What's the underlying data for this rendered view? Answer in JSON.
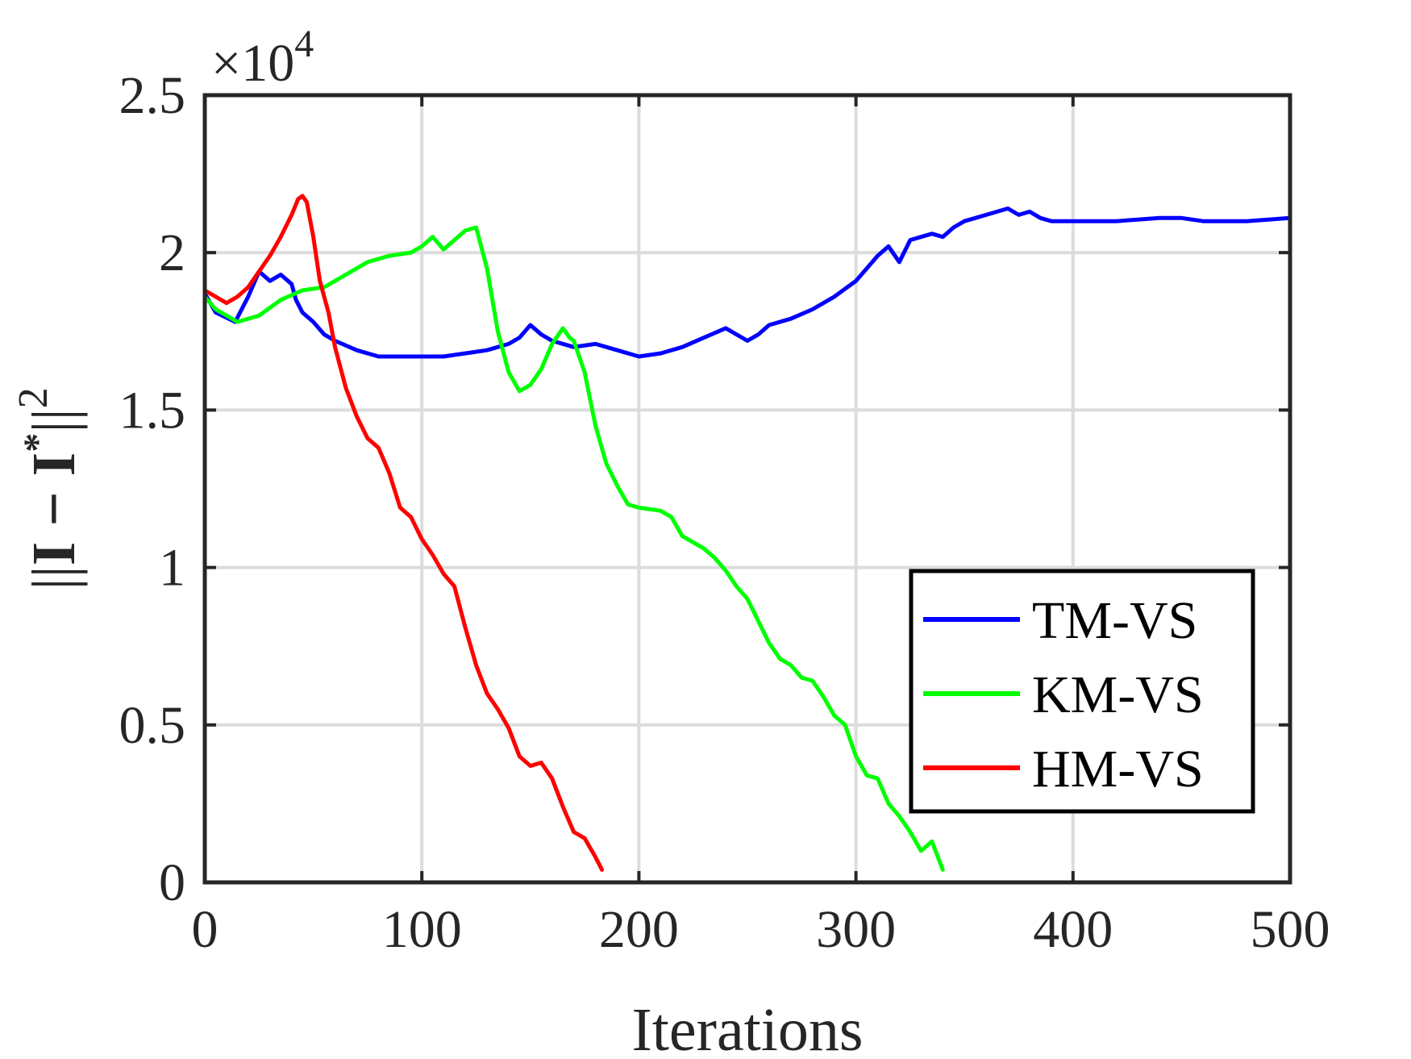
{
  "chart_data": {
    "type": "line",
    "title": "",
    "xlabel": "Iterations",
    "ylabel_parts": {
      "open": "||",
      "mid": "I − I",
      "sup": "*",
      "close": "||",
      "power": "2"
    },
    "exponent_label": {
      "base": "×10",
      "power": "4"
    },
    "xlim": [
      0,
      500
    ],
    "ylim": [
      0,
      2.5
    ],
    "xticks": [
      0,
      100,
      200,
      300,
      400,
      500
    ],
    "xtick_labels": [
      "0",
      "100",
      "200",
      "300",
      "400",
      "500"
    ],
    "yticks": [
      0,
      0.5,
      1,
      1.5,
      2,
      2.5
    ],
    "ytick_labels": [
      "0",
      "0.5",
      "1",
      "1.5",
      "2",
      "2.5"
    ],
    "grid": true,
    "legend_position": "lower-right",
    "series": [
      {
        "name": "TM-VS",
        "color": "#0000ff",
        "x": [
          0,
          5,
          8,
          14,
          20,
          25,
          30,
          35,
          40,
          42,
          45,
          50,
          55,
          60,
          70,
          80,
          90,
          100,
          110,
          120,
          130,
          140,
          145,
          150,
          155,
          160,
          170,
          180,
          190,
          200,
          210,
          220,
          230,
          240,
          250,
          255,
          260,
          270,
          280,
          290,
          300,
          305,
          310,
          315,
          320,
          325,
          330,
          335,
          340,
          345,
          350,
          355,
          360,
          370,
          375,
          380,
          385,
          390,
          400,
          420,
          440,
          450,
          460,
          480,
          500
        ],
        "y": [
          1.87,
          1.81,
          1.8,
          1.78,
          1.86,
          1.94,
          1.91,
          1.93,
          1.9,
          1.85,
          1.81,
          1.78,
          1.74,
          1.72,
          1.69,
          1.67,
          1.67,
          1.67,
          1.67,
          1.68,
          1.69,
          1.71,
          1.73,
          1.77,
          1.74,
          1.72,
          1.7,
          1.71,
          1.69,
          1.67,
          1.68,
          1.7,
          1.73,
          1.76,
          1.72,
          1.74,
          1.77,
          1.79,
          1.82,
          1.86,
          1.91,
          1.95,
          1.99,
          2.02,
          1.97,
          2.04,
          2.05,
          2.06,
          2.05,
          2.08,
          2.1,
          2.11,
          2.12,
          2.14,
          2.12,
          2.13,
          2.11,
          2.1,
          2.1,
          2.1,
          2.11,
          2.11,
          2.1,
          2.1,
          2.11
        ]
      },
      {
        "name": "KM-VS",
        "color": "#00ff00",
        "x": [
          0,
          5,
          15,
          25,
          35,
          45,
          55,
          65,
          75,
          85,
          95,
          100,
          105,
          110,
          115,
          120,
          125,
          130,
          135,
          140,
          145,
          150,
          155,
          160,
          165,
          168,
          170,
          175,
          180,
          185,
          190,
          195,
          200,
          210,
          215,
          220,
          225,
          230,
          235,
          240,
          245,
          250,
          255,
          260,
          265,
          270,
          275,
          280,
          285,
          290,
          295,
          300,
          305,
          310,
          315,
          320,
          325,
          330,
          335,
          340
        ],
        "y": [
          1.86,
          1.82,
          1.78,
          1.8,
          1.85,
          1.88,
          1.89,
          1.93,
          1.97,
          1.99,
          2.0,
          2.02,
          2.05,
          2.01,
          2.04,
          2.07,
          2.08,
          1.95,
          1.75,
          1.62,
          1.56,
          1.58,
          1.63,
          1.71,
          1.76,
          1.73,
          1.72,
          1.62,
          1.45,
          1.33,
          1.26,
          1.2,
          1.19,
          1.18,
          1.16,
          1.1,
          1.08,
          1.06,
          1.03,
          0.99,
          0.94,
          0.9,
          0.83,
          0.76,
          0.71,
          0.69,
          0.65,
          0.64,
          0.59,
          0.53,
          0.5,
          0.4,
          0.34,
          0.33,
          0.25,
          0.21,
          0.16,
          0.1,
          0.13,
          0.04
        ]
      },
      {
        "name": "HM-VS",
        "color": "#ff0000",
        "x": [
          0,
          5,
          10,
          15,
          20,
          25,
          30,
          35,
          40,
          43,
          45,
          47,
          50,
          53,
          57,
          60,
          65,
          70,
          75,
          80,
          85,
          90,
          95,
          100,
          105,
          110,
          115,
          120,
          125,
          130,
          135,
          140,
          145,
          150,
          155,
          160,
          165,
          170,
          175,
          180,
          183
        ],
        "y": [
          1.88,
          1.86,
          1.84,
          1.86,
          1.89,
          1.94,
          1.99,
          2.05,
          2.12,
          2.17,
          2.18,
          2.16,
          2.05,
          1.91,
          1.81,
          1.7,
          1.57,
          1.48,
          1.41,
          1.38,
          1.3,
          1.19,
          1.16,
          1.09,
          1.04,
          0.98,
          0.94,
          0.81,
          0.69,
          0.6,
          0.55,
          0.49,
          0.4,
          0.37,
          0.38,
          0.33,
          0.24,
          0.16,
          0.14,
          0.08,
          0.04
        ]
      }
    ]
  }
}
